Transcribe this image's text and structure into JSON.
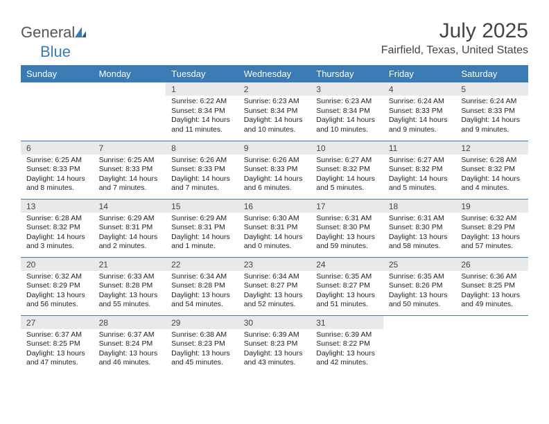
{
  "brand": {
    "name_gray": "General",
    "name_blue": "Blue"
  },
  "title": {
    "month": "July 2025",
    "location": "Fairfield, Texas, United States"
  },
  "colors": {
    "header_bg": "#3a7ab5",
    "daynum_bg": "#e8e9ea",
    "divider": "#3a7ab5",
    "text": "#222222"
  },
  "weekdays": [
    "Sunday",
    "Monday",
    "Tuesday",
    "Wednesday",
    "Thursday",
    "Friday",
    "Saturday"
  ],
  "weeks": [
    [
      null,
      null,
      {
        "n": "1",
        "sr": "6:22 AM",
        "ss": "8:34 PM",
        "dl": "14 hours and 11 minutes."
      },
      {
        "n": "2",
        "sr": "6:23 AM",
        "ss": "8:34 PM",
        "dl": "14 hours and 10 minutes."
      },
      {
        "n": "3",
        "sr": "6:23 AM",
        "ss": "8:34 PM",
        "dl": "14 hours and 10 minutes."
      },
      {
        "n": "4",
        "sr": "6:24 AM",
        "ss": "8:33 PM",
        "dl": "14 hours and 9 minutes."
      },
      {
        "n": "5",
        "sr": "6:24 AM",
        "ss": "8:33 PM",
        "dl": "14 hours and 9 minutes."
      }
    ],
    [
      {
        "n": "6",
        "sr": "6:25 AM",
        "ss": "8:33 PM",
        "dl": "14 hours and 8 minutes."
      },
      {
        "n": "7",
        "sr": "6:25 AM",
        "ss": "8:33 PM",
        "dl": "14 hours and 7 minutes."
      },
      {
        "n": "8",
        "sr": "6:26 AM",
        "ss": "8:33 PM",
        "dl": "14 hours and 7 minutes."
      },
      {
        "n": "9",
        "sr": "6:26 AM",
        "ss": "8:33 PM",
        "dl": "14 hours and 6 minutes."
      },
      {
        "n": "10",
        "sr": "6:27 AM",
        "ss": "8:32 PM",
        "dl": "14 hours and 5 minutes."
      },
      {
        "n": "11",
        "sr": "6:27 AM",
        "ss": "8:32 PM",
        "dl": "14 hours and 5 minutes."
      },
      {
        "n": "12",
        "sr": "6:28 AM",
        "ss": "8:32 PM",
        "dl": "14 hours and 4 minutes."
      }
    ],
    [
      {
        "n": "13",
        "sr": "6:28 AM",
        "ss": "8:32 PM",
        "dl": "14 hours and 3 minutes."
      },
      {
        "n": "14",
        "sr": "6:29 AM",
        "ss": "8:31 PM",
        "dl": "14 hours and 2 minutes."
      },
      {
        "n": "15",
        "sr": "6:29 AM",
        "ss": "8:31 PM",
        "dl": "14 hours and 1 minute."
      },
      {
        "n": "16",
        "sr": "6:30 AM",
        "ss": "8:31 PM",
        "dl": "14 hours and 0 minutes."
      },
      {
        "n": "17",
        "sr": "6:31 AM",
        "ss": "8:30 PM",
        "dl": "13 hours and 59 minutes."
      },
      {
        "n": "18",
        "sr": "6:31 AM",
        "ss": "8:30 PM",
        "dl": "13 hours and 58 minutes."
      },
      {
        "n": "19",
        "sr": "6:32 AM",
        "ss": "8:29 PM",
        "dl": "13 hours and 57 minutes."
      }
    ],
    [
      {
        "n": "20",
        "sr": "6:32 AM",
        "ss": "8:29 PM",
        "dl": "13 hours and 56 minutes."
      },
      {
        "n": "21",
        "sr": "6:33 AM",
        "ss": "8:28 PM",
        "dl": "13 hours and 55 minutes."
      },
      {
        "n": "22",
        "sr": "6:34 AM",
        "ss": "8:28 PM",
        "dl": "13 hours and 54 minutes."
      },
      {
        "n": "23",
        "sr": "6:34 AM",
        "ss": "8:27 PM",
        "dl": "13 hours and 52 minutes."
      },
      {
        "n": "24",
        "sr": "6:35 AM",
        "ss": "8:27 PM",
        "dl": "13 hours and 51 minutes."
      },
      {
        "n": "25",
        "sr": "6:35 AM",
        "ss": "8:26 PM",
        "dl": "13 hours and 50 minutes."
      },
      {
        "n": "26",
        "sr": "6:36 AM",
        "ss": "8:25 PM",
        "dl": "13 hours and 49 minutes."
      }
    ],
    [
      {
        "n": "27",
        "sr": "6:37 AM",
        "ss": "8:25 PM",
        "dl": "13 hours and 47 minutes."
      },
      {
        "n": "28",
        "sr": "6:37 AM",
        "ss": "8:24 PM",
        "dl": "13 hours and 46 minutes."
      },
      {
        "n": "29",
        "sr": "6:38 AM",
        "ss": "8:23 PM",
        "dl": "13 hours and 45 minutes."
      },
      {
        "n": "30",
        "sr": "6:39 AM",
        "ss": "8:23 PM",
        "dl": "13 hours and 43 minutes."
      },
      {
        "n": "31",
        "sr": "6:39 AM",
        "ss": "8:22 PM",
        "dl": "13 hours and 42 minutes."
      },
      null,
      null
    ]
  ],
  "labels": {
    "sunrise": "Sunrise:",
    "sunset": "Sunset:",
    "daylight": "Daylight:"
  }
}
